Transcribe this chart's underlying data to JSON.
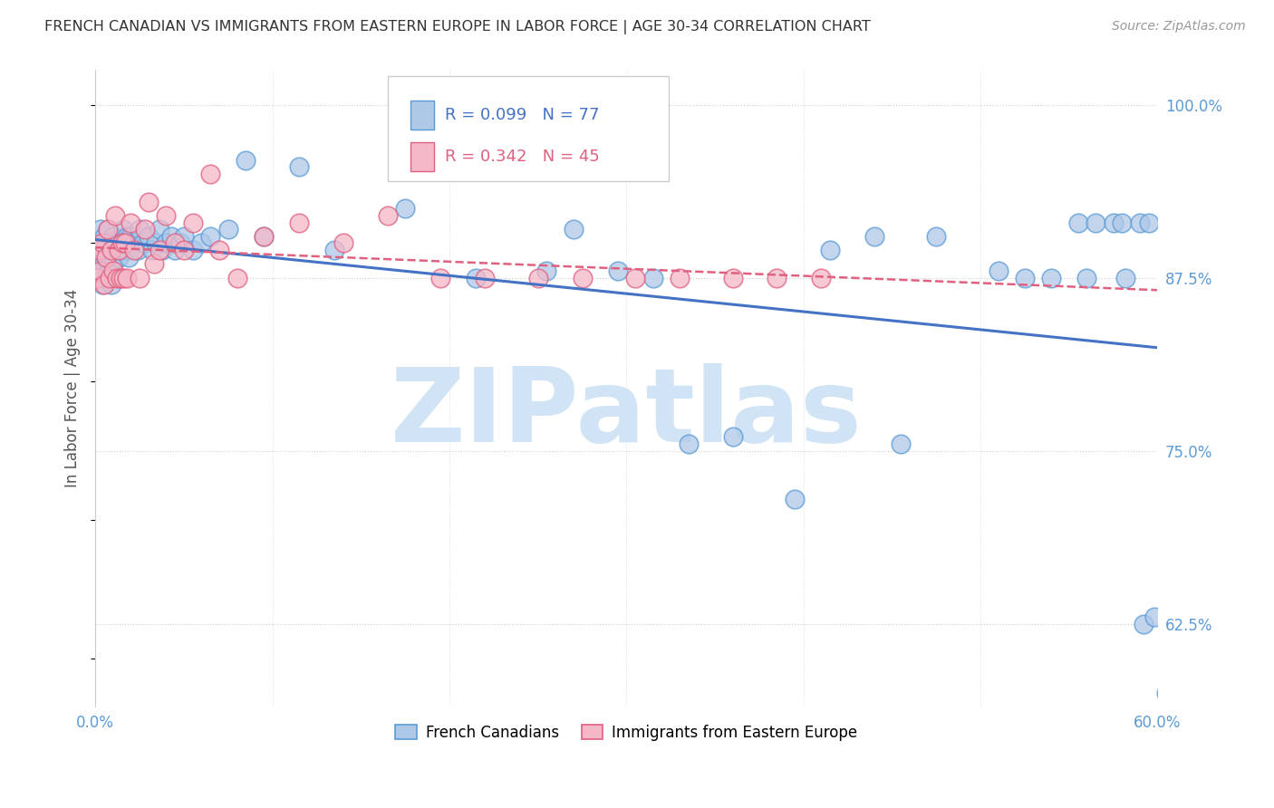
{
  "title": "FRENCH CANADIAN VS IMMIGRANTS FROM EASTERN EUROPE IN LABOR FORCE | AGE 30-34 CORRELATION CHART",
  "source": "Source: ZipAtlas.com",
  "ylabel": "In Labor Force | Age 30-34",
  "ytick_labels": [
    "100.0%",
    "87.5%",
    "75.0%",
    "62.5%"
  ],
  "ytick_values": [
    1.0,
    0.875,
    0.75,
    0.625
  ],
  "xlim": [
    0.0,
    0.6
  ],
  "ylim": [
    0.565,
    1.025
  ],
  "legend_label1": "French Canadians",
  "legend_label2": "Immigrants from Eastern Europe",
  "R1": 0.099,
  "N1": 77,
  "R2": 0.342,
  "N2": 45,
  "blue_fill": "#aec8e8",
  "blue_edge": "#5b9bd5",
  "pink_fill": "#f4b8c8",
  "pink_edge": "#e06080",
  "blue_line_color": "#4472c4",
  "pink_line_color": "#e06080",
  "axis_color": "#5b9bd5",
  "title_color": "#333333",
  "source_color": "#999999",
  "watermark_text": "ZIPatlas",
  "watermark_color": "#d0e4f5",
  "grid_color": "#d0d0d0",
  "blue_x": [
    0.001,
    0.002,
    0.003,
    0.003,
    0.004,
    0.004,
    0.005,
    0.005,
    0.006,
    0.006,
    0.007,
    0.007,
    0.008,
    0.008,
    0.009,
    0.009,
    0.01,
    0.01,
    0.011,
    0.012,
    0.013,
    0.014,
    0.015,
    0.016,
    0.017,
    0.018,
    0.019,
    0.02,
    0.022,
    0.024,
    0.025,
    0.027,
    0.03,
    0.032,
    0.034,
    0.036,
    0.038,
    0.04,
    0.043,
    0.045,
    0.048,
    0.05,
    0.055,
    0.06,
    0.065,
    0.075,
    0.085,
    0.095,
    0.115,
    0.135,
    0.175,
    0.215,
    0.255,
    0.27,
    0.295,
    0.315,
    0.335,
    0.36,
    0.395,
    0.415,
    0.44,
    0.455,
    0.475,
    0.51,
    0.525,
    0.54,
    0.555,
    0.565,
    0.575,
    0.58,
    0.59,
    0.595,
    0.56,
    0.582,
    0.592,
    0.598,
    0.605
  ],
  "blue_y": [
    0.9,
    0.89,
    0.91,
    0.88,
    0.895,
    0.87,
    0.905,
    0.885,
    0.9,
    0.875,
    0.91,
    0.885,
    0.9,
    0.88,
    0.895,
    0.87,
    0.905,
    0.885,
    0.895,
    0.9,
    0.89,
    0.895,
    0.9,
    0.91,
    0.895,
    0.905,
    0.89,
    0.905,
    0.9,
    0.895,
    0.91,
    0.9,
    0.905,
    0.895,
    0.9,
    0.91,
    0.895,
    0.9,
    0.905,
    0.895,
    0.9,
    0.905,
    0.895,
    0.9,
    0.905,
    0.91,
    0.96,
    0.905,
    0.955,
    0.895,
    0.925,
    0.875,
    0.88,
    0.91,
    0.88,
    0.875,
    0.755,
    0.76,
    0.715,
    0.895,
    0.905,
    0.755,
    0.905,
    0.88,
    0.875,
    0.875,
    0.915,
    0.915,
    0.915,
    0.915,
    0.915,
    0.915,
    0.875,
    0.875,
    0.625,
    0.63,
    0.575
  ],
  "pink_x": [
    0.001,
    0.002,
    0.003,
    0.004,
    0.005,
    0.006,
    0.007,
    0.008,
    0.009,
    0.01,
    0.011,
    0.012,
    0.013,
    0.014,
    0.015,
    0.016,
    0.017,
    0.018,
    0.02,
    0.022,
    0.025,
    0.028,
    0.03,
    0.033,
    0.036,
    0.04,
    0.045,
    0.05,
    0.055,
    0.065,
    0.07,
    0.08,
    0.095,
    0.115,
    0.14,
    0.165,
    0.195,
    0.22,
    0.25,
    0.275,
    0.305,
    0.33,
    0.36,
    0.385,
    0.41
  ],
  "pink_y": [
    0.875,
    0.895,
    0.88,
    0.9,
    0.87,
    0.89,
    0.91,
    0.875,
    0.895,
    0.88,
    0.92,
    0.875,
    0.895,
    0.875,
    0.9,
    0.875,
    0.9,
    0.875,
    0.915,
    0.895,
    0.875,
    0.91,
    0.93,
    0.885,
    0.895,
    0.92,
    0.9,
    0.895,
    0.915,
    0.95,
    0.895,
    0.875,
    0.905,
    0.915,
    0.9,
    0.92,
    0.875,
    0.875,
    0.875,
    0.875,
    0.875,
    0.875,
    0.875,
    0.875,
    0.875
  ]
}
